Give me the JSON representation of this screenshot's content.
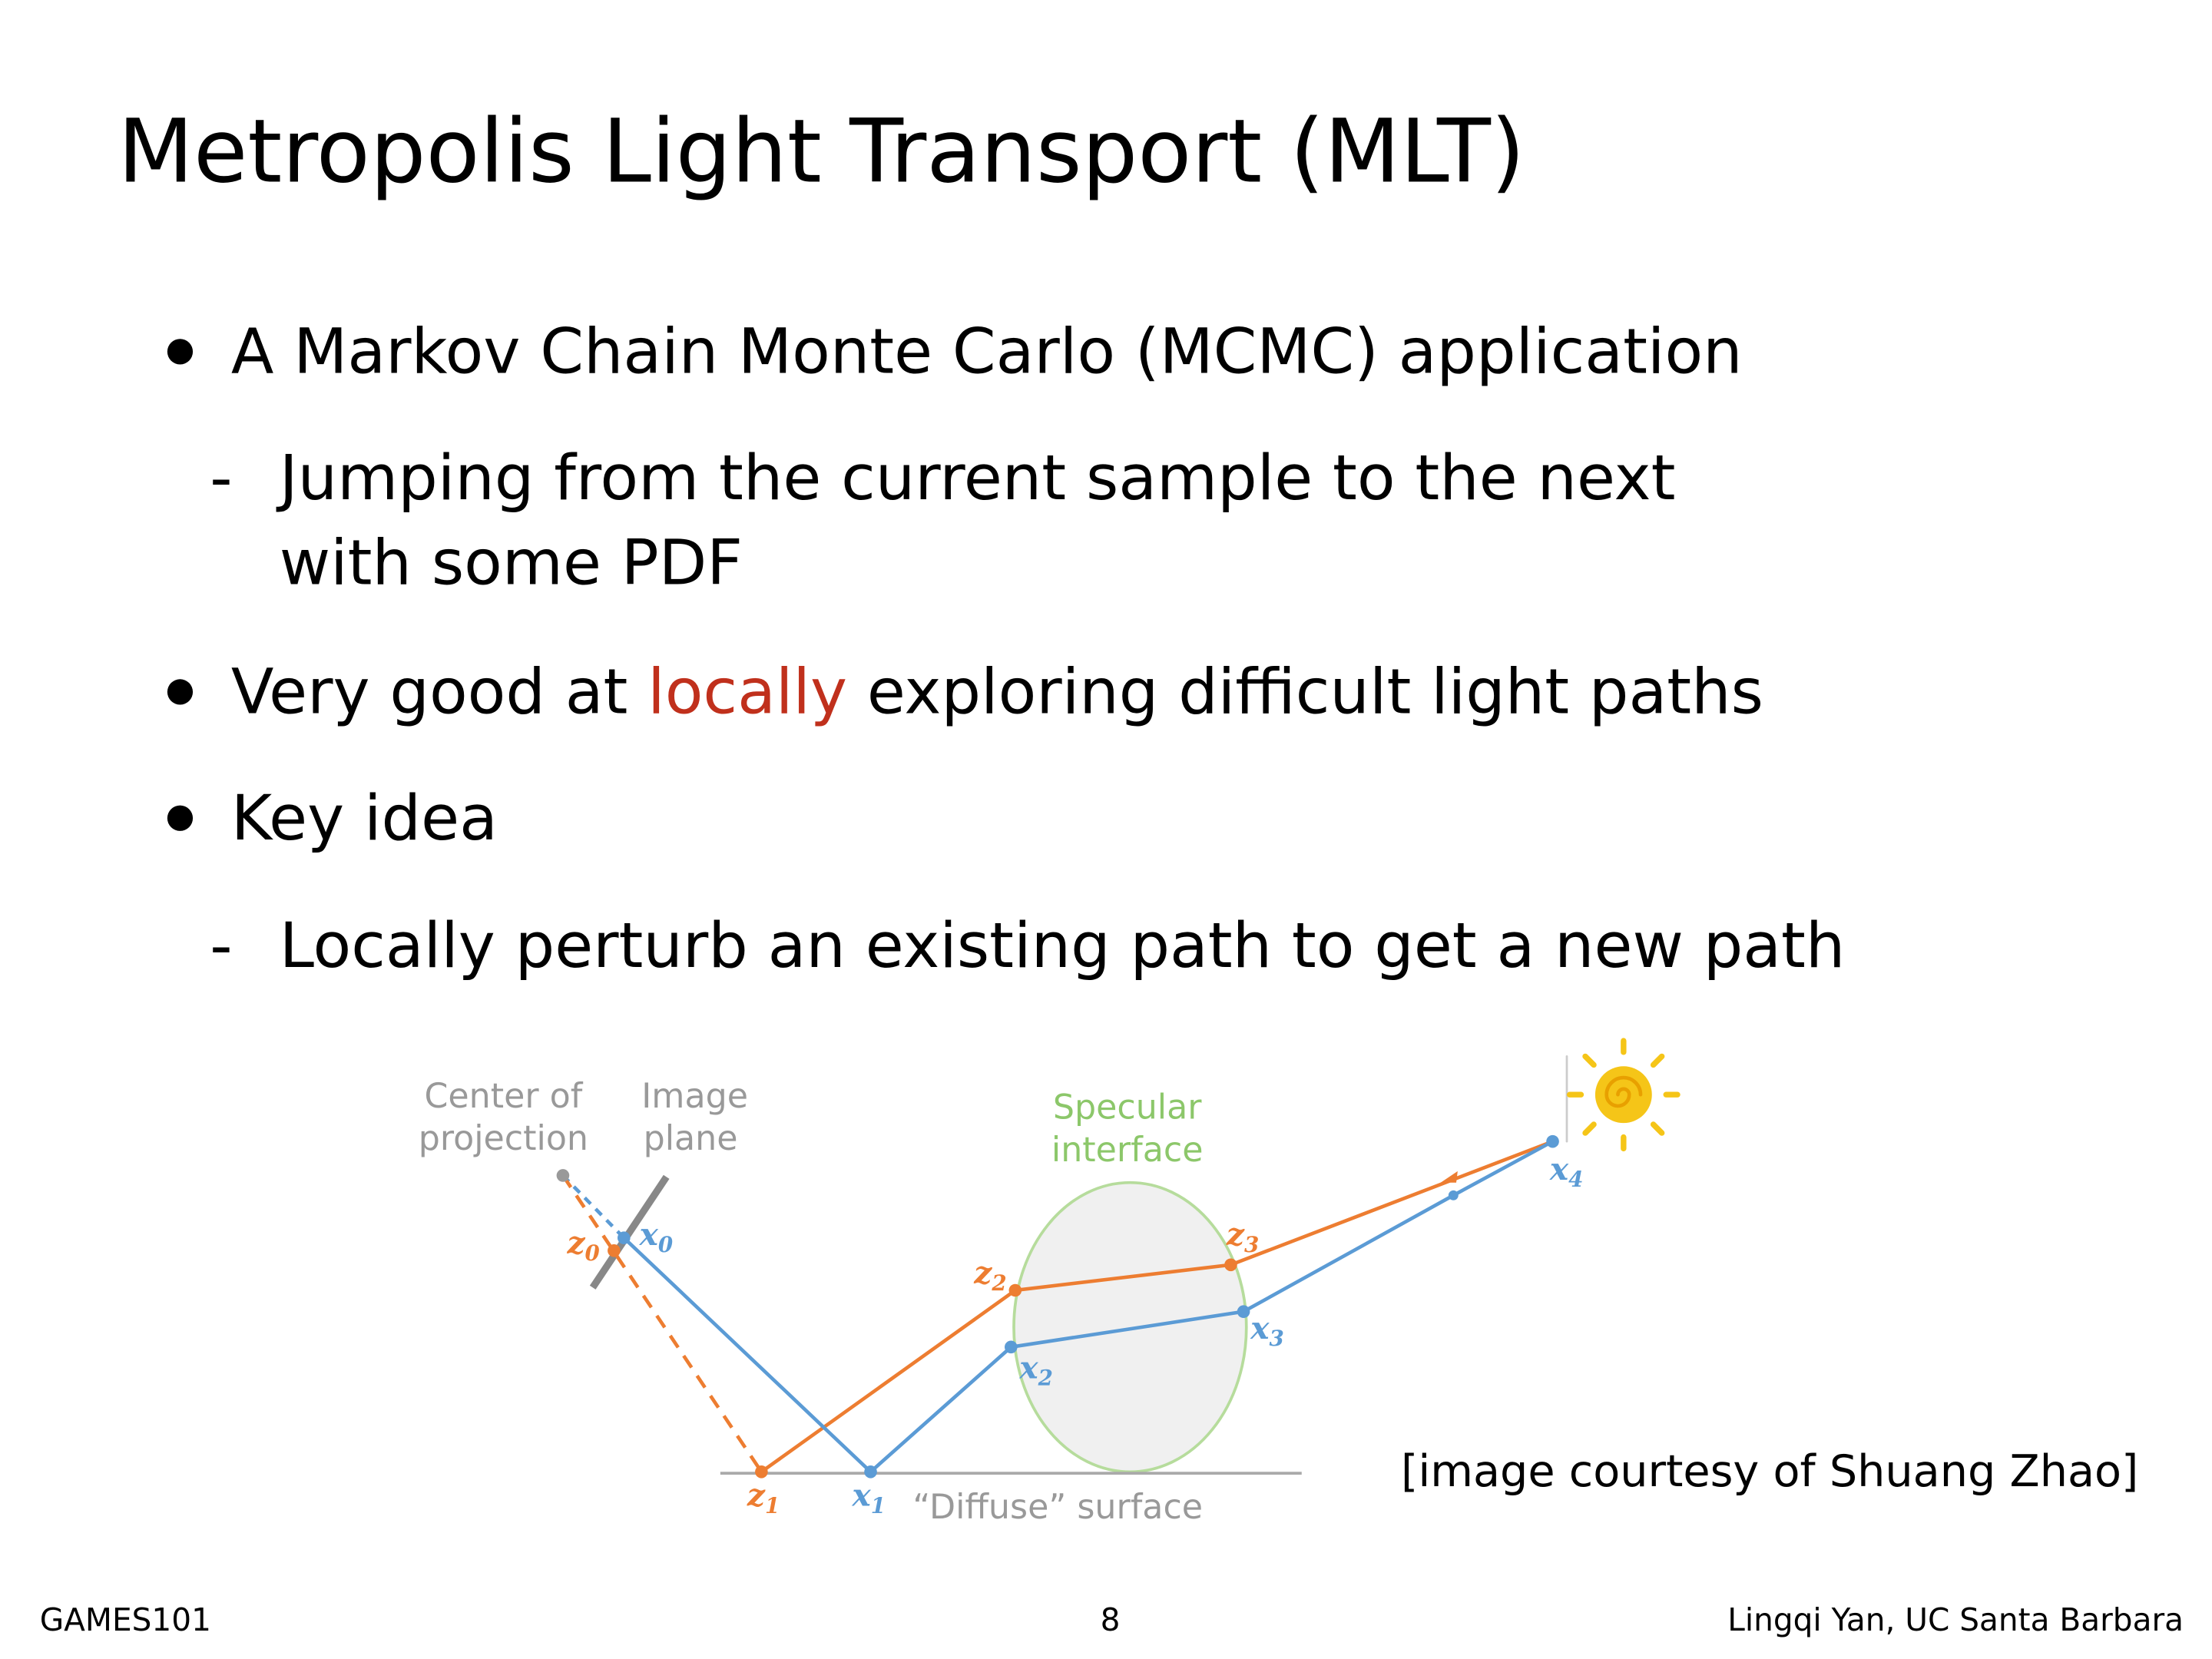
{
  "title": "Metropolis Light Transport (MLT)",
  "bullets": [
    {
      "text": "A Markov Chain Monte Carlo (MCMC) application",
      "sub": [
        "Jumping from the current sample to the next",
        "with some PDF"
      ]
    },
    {
      "parts": [
        "Very good at ",
        "locally",
        " exploring difficult light paths"
      ]
    },
    {
      "text": "Key idea",
      "sub": [
        "Locally perturb an existing path to get a new path"
      ]
    }
  ],
  "figure": {
    "center_label": [
      "Center of",
      "projection"
    ],
    "plane_label": [
      "Image",
      "plane"
    ],
    "specular_label": [
      "Specular",
      "interface"
    ],
    "surface_label": "“Diffuse” surface",
    "points": [
      {
        "base": "z",
        "sub": "0"
      },
      {
        "base": "x",
        "sub": "0"
      },
      {
        "base": "z",
        "sub": "1"
      },
      {
        "base": "x",
        "sub": "1"
      },
      {
        "base": "z",
        "sub": "2"
      },
      {
        "base": "x",
        "sub": "2"
      },
      {
        "base": "z",
        "sub": "3"
      },
      {
        "base": "x",
        "sub": "3"
      },
      {
        "base": "x",
        "sub": "4"
      }
    ],
    "caption": "[image courtesy of Shuang Zhao]"
  },
  "footer": {
    "left": "GAMES101",
    "center": "8",
    "right": "Lingqi Yan, UC Santa Barbara"
  }
}
